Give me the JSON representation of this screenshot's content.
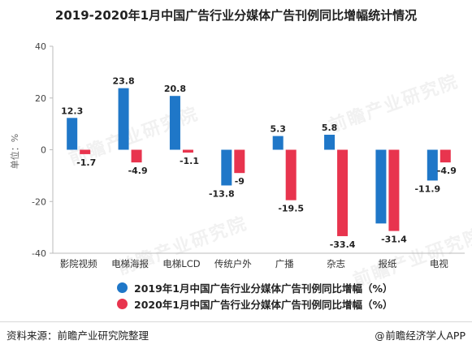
{
  "watermark": "前瞻产业研究院",
  "chart_data": {
    "type": "bar",
    "title": "2019-2020年1月中国广告行业分媒体广告刊例同比增幅统计情况",
    "ylabel": "单位：%",
    "xlabel": "",
    "ylim": [
      -40,
      40
    ],
    "yticks": [
      "40",
      "20",
      "0",
      "-20",
      "-40"
    ],
    "categories": [
      "影院视频",
      "电梯海报",
      "电梯LCD",
      "传统户外",
      "广播",
      "杂志",
      "报纸",
      "电视"
    ],
    "series": [
      {
        "name": "2019年1月中国广告行业分媒体广告刊例同比增幅（%）",
        "color": "#1f77c8",
        "values": [
          12.3,
          23.8,
          20.8,
          -13.8,
          5.3,
          5.8,
          -28.5,
          -11.9
        ],
        "labels": [
          "12.3",
          "23.8",
          "20.8",
          "-13.8",
          "5.3",
          "5.8",
          "",
          "-11.9"
        ]
      },
      {
        "name": "2020年1月中国广告行业分媒体广告刊例同比增幅（%）",
        "color": "#e8344e",
        "values": [
          -1.7,
          -4.9,
          -1.1,
          -9,
          -19.5,
          -33.4,
          -31.4,
          -4.9
        ],
        "labels": [
          "-1.7",
          "-4.9",
          "-1.1",
          "-9",
          "-19.5",
          "-33.4",
          "-31.4",
          "-4.9"
        ]
      }
    ],
    "legend_position": "bottom",
    "grid": false
  },
  "footer": {
    "source": "资料来源：前瞻产业研究院整理",
    "at": "@",
    "brand": "前瞻经济学人APP"
  }
}
